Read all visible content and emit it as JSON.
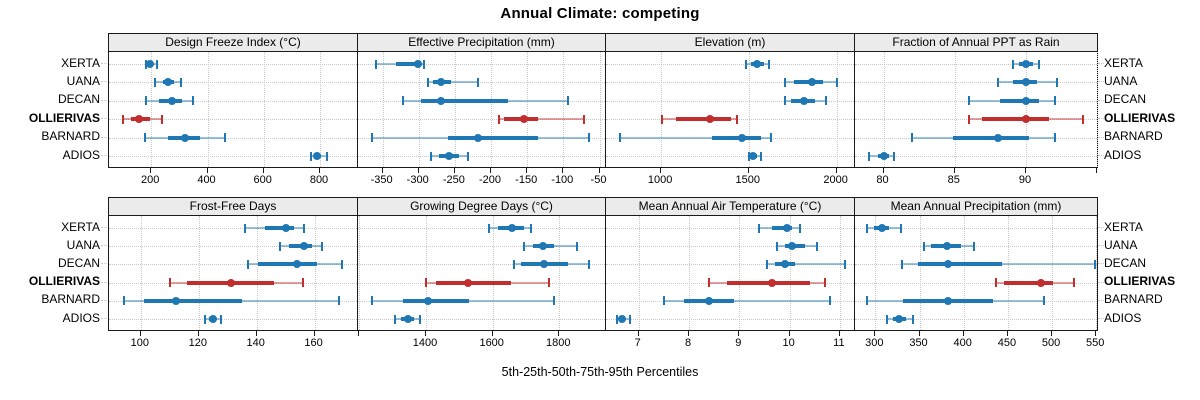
{
  "title": "Annual Climate: competing",
  "caption": "5th-25th-50th-75th-95th Percentiles",
  "colors": {
    "series_blue": "#1F77B4",
    "highlight_red": "#C22E2E",
    "strip_bg": "#EBEBEB",
    "grid": "#C9C9C9",
    "border": "#1A1A1A"
  },
  "sites": [
    "XERTA",
    "UANA",
    "DECAN",
    "OLLIERIVAS",
    "BARNARD",
    "ADIOS"
  ],
  "highlight_site": "OLLIERIVAS",
  "chart_data": {
    "type": "dotplot",
    "subtype": "trellis-percentile-whiskers",
    "percentiles": [
      5,
      25,
      50,
      75,
      95
    ],
    "rows": [
      "XERTA",
      "UANA",
      "DECAN",
      "OLLIERIVAS",
      "BARNARD",
      "ADIOS"
    ],
    "highlight_row": "OLLIERIVAS",
    "panels": [
      {
        "grid_row": 0,
        "grid_col": 0,
        "title": "Design Freeze Index (°C)",
        "xlim": [
          50,
          935
        ],
        "ticks": [
          200,
          400,
          600,
          800
        ],
        "extra_ticks": [],
        "values": {
          "XERTA": [
            182,
            190,
            196,
            208,
            221
          ],
          "UANA": [
            213,
            240,
            259,
            280,
            306
          ],
          "DECAN": [
            181,
            228,
            274,
            310,
            348
          ],
          "OLLIERIVAS": [
            99,
            128,
            155,
            195,
            237
          ],
          "BARNARD": [
            176,
            258,
            320,
            375,
            461
          ],
          "ADIOS": [
            767,
            780,
            790,
            805,
            823
          ]
        }
      },
      {
        "grid_row": 0,
        "grid_col": 1,
        "title": "Effective Precipitation (mm)",
        "xlim": [
          -384,
          -41
        ],
        "ticks": [
          -350,
          -300,
          -250,
          -200,
          -150,
          -100,
          -50
        ],
        "extra_ticks": [],
        "values": {
          "XERTA": [
            -359,
            -332,
            -301,
            -297,
            -293
          ],
          "UANA": [
            -287,
            -281,
            -269,
            -255,
            -218
          ],
          "DECAN": [
            -322,
            -297,
            -269,
            -177,
            -94
          ],
          "OLLIERIVAS": [
            -189,
            -182,
            -154,
            -135,
            -71
          ],
          "BARNARD": [
            -365,
            -260,
            -218,
            -135,
            -64
          ],
          "ADIOS": [
            -283,
            -272,
            -258,
            -244,
            -232
          ]
        }
      },
      {
        "grid_row": 0,
        "grid_col": 2,
        "title": "Elevation (m)",
        "xlim": [
          686,
          2105
        ],
        "ticks": [
          1000,
          1500,
          2000
        ],
        "extra_ticks": [],
        "values": {
          "XERTA": [
            1486,
            1512,
            1549,
            1588,
            1615
          ],
          "UANA": [
            1706,
            1755,
            1857,
            1920,
            2003
          ],
          "DECAN": [
            1706,
            1742,
            1813,
            1878,
            1942
          ],
          "OLLIERIVAS": [
            1005,
            1082,
            1278,
            1400,
            1435
          ],
          "BARNARD": [
            767,
            1290,
            1463,
            1570,
            1624
          ],
          "ADIOS": [
            1498,
            1510,
            1524,
            1545,
            1568
          ]
        }
      },
      {
        "grid_row": 0,
        "grid_col": 3,
        "title": "Fraction of Annual PPT as Rain",
        "xlim": [
          78,
          95.05
        ],
        "ticks": [
          80,
          85,
          90
        ],
        "extra_ticks": [
          95
        ],
        "values": {
          "XERTA": [
            89.1,
            89.5,
            90.0,
            90.5,
            90.9
          ],
          "UANA": [
            88.0,
            89.1,
            90.0,
            90.8,
            92.2
          ],
          "DECAN": [
            86.0,
            88.2,
            90.0,
            90.9,
            92.0
          ],
          "OLLIERIVAS": [
            86.0,
            86.9,
            90.0,
            91.6,
            94.0
          ],
          "BARNARD": [
            82.0,
            84.9,
            88.0,
            90.2,
            92.0
          ],
          "ADIOS": [
            79.0,
            79.6,
            80.0,
            80.4,
            80.7
          ]
        }
      },
      {
        "grid_row": 1,
        "grid_col": 0,
        "title": "Frost-Free Days",
        "xlim": [
          89,
          175
        ],
        "ticks": [
          100,
          120,
          140,
          160
        ],
        "extra_ticks": [],
        "values": {
          "XERTA": [
            136,
            143,
            150,
            153,
            156.5
          ],
          "UANA": [
            148,
            151,
            156.5,
            159,
            162.5
          ],
          "DECAN": [
            137,
            140.5,
            154,
            161,
            169.5
          ],
          "OLLIERIVAS": [
            110,
            116,
            131,
            146,
            156
          ],
          "BARNARD": [
            94,
            101,
            112,
            135,
            168.5
          ],
          "ADIOS": [
            122,
            123.5,
            125,
            126,
            127.5
          ]
        }
      },
      {
        "grid_row": 1,
        "grid_col": 1,
        "title": "Growing Degree Days (°C)",
        "xlim": [
          1196,
          1940
        ],
        "ticks": [
          1400,
          1600,
          1800
        ],
        "extra_ticks": [
          1200
        ],
        "values": {
          "XERTA": [
            1590,
            1615,
            1658,
            1695,
            1715
          ],
          "UANA": [
            1695,
            1720,
            1750,
            1785,
            1853
          ],
          "DECAN": [
            1663,
            1685,
            1753,
            1825,
            1890
          ],
          "OLLIERIVAS": [
            1400,
            1430,
            1527,
            1655,
            1768
          ],
          "BARNARD": [
            1237,
            1330,
            1405,
            1530,
            1785
          ],
          "ADIOS": [
            1308,
            1325,
            1345,
            1365,
            1382
          ]
        }
      },
      {
        "grid_row": 1,
        "grid_col": 2,
        "title": "Mean Annual Air Temperature (°C)",
        "xlim": [
          6.35,
          11.3
        ],
        "ticks": [
          7,
          8,
          9,
          10,
          11
        ],
        "extra_ticks": [],
        "values": {
          "XERTA": [
            9.4,
            9.65,
            9.95,
            10.05,
            10.2
          ],
          "UANA": [
            9.75,
            9.9,
            10.05,
            10.3,
            10.55
          ],
          "DECAN": [
            9.55,
            9.7,
            9.9,
            10.1,
            11.1
          ],
          "OLLIERIVAS": [
            8.4,
            8.75,
            9.65,
            10.4,
            10.7
          ],
          "BARNARD": [
            7.5,
            7.9,
            8.4,
            8.9,
            10.8
          ],
          "ADIOS": [
            6.57,
            6.62,
            6.67,
            6.73,
            6.83
          ]
        }
      },
      {
        "grid_row": 1,
        "grid_col": 3,
        "title": "Mean Annual Precipitation (mm)",
        "xlim": [
          277,
          552
        ],
        "ticks": [
          300,
          350,
          400,
          450,
          500,
          550
        ],
        "extra_ticks": [],
        "values": {
          "XERTA": [
            291,
            298,
            308,
            316,
            329
          ],
          "UANA": [
            355,
            363,
            381,
            397,
            412
          ],
          "DECAN": [
            330,
            348,
            382,
            444,
            548
          ],
          "OLLIERIVAS": [
            437,
            446,
            488,
            501,
            525
          ],
          "BARNARD": [
            291,
            331,
            382,
            433,
            491
          ],
          "ADIOS": [
            313,
            320,
            327,
            335,
            343
          ]
        }
      }
    ]
  }
}
